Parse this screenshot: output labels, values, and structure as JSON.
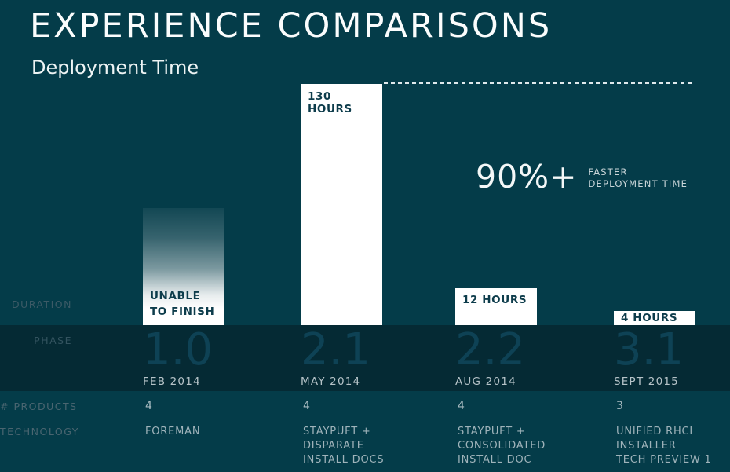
{
  "header": {
    "title": "EXPERIENCE COMPARISONS",
    "subtitle": "Deployment Time"
  },
  "annotation": {
    "value": "90%+",
    "caption_line1": "FASTER",
    "caption_line2": "DEPLOYMENT TIME"
  },
  "row_labels": {
    "duration": "DURATION",
    "phase": "PHASE",
    "products": "# PRODUCTS",
    "technology": "TECHNOLOGY"
  },
  "colors": {
    "background": "#043c49",
    "phase_band": "#052a34",
    "bar_fill": "#ffffff",
    "bar_text": "#0d3c4b",
    "phase_number": "#0e4255",
    "light_text": "#f4f8f8",
    "muted_label": "#4a6570"
  },
  "chart_data": {
    "type": "bar",
    "title": "Deployment Time",
    "ylabel": "DURATION",
    "unit": "hours",
    "annotation": "90%+ FASTER DEPLOYMENT TIME",
    "legend": "none",
    "grid": "off",
    "baseline_dashed_at_hours": 130,
    "categories": [
      "1.0",
      "2.1",
      "2.2",
      "3.1"
    ],
    "columns": [
      {
        "phase": "1.0",
        "date": "FEB 2014",
        "duration_hours": null,
        "duration_lines": [
          "UNABLE",
          "TO FINISH"
        ],
        "bar_style": "gradient-fade (indeterminate)",
        "products": "4",
        "technology": [
          "FOREMAN"
        ]
      },
      {
        "phase": "2.1",
        "date": "MAY 2014",
        "duration_hours": 130,
        "duration_lines": [
          "130 HOURS"
        ],
        "bar_style": "solid",
        "products": "4",
        "technology": [
          "STAYPUFT +",
          "DISPARATE",
          "INSTALL DOCS"
        ]
      },
      {
        "phase": "2.2",
        "date": "AUG 2014",
        "duration_hours": 12,
        "duration_lines": [
          "12 HOURS"
        ],
        "bar_style": "solid",
        "products": "4",
        "technology": [
          "STAYPUFT +",
          "CONSOLIDATED",
          "INSTALL DOC"
        ]
      },
      {
        "phase": "3.1",
        "date": "SEPT 2015",
        "duration_hours": 4,
        "duration_lines": [
          "4 HOURS"
        ],
        "bar_style": "solid",
        "products": "3",
        "technology": [
          "UNIFIED RHCI",
          "INSTALLER",
          "TECH PREVIEW 1"
        ]
      }
    ]
  }
}
